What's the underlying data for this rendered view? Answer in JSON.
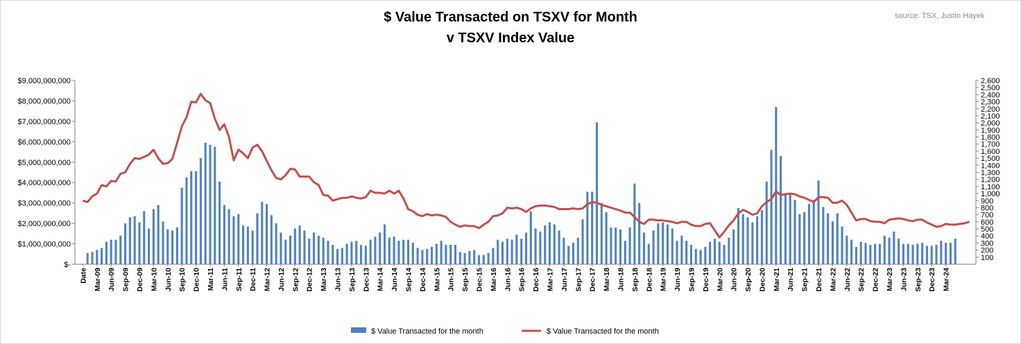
{
  "chart_data": {
    "type": "bar+line",
    "title_line1": "$ Value Transacted on TSXV for Month",
    "title_line2": "v TSXV Index Value",
    "source": "source: TSX, Justin Hayek",
    "y_left_ticks": [
      "$-",
      "$1,000,000,000",
      "$2,000,000,000",
      "$3,000,000,000",
      "$4,000,000,000",
      "$5,000,000,000",
      "$6,000,000,000",
      "$7,000,000,000",
      "$8,000,000,000",
      "$9,000,000,000"
    ],
    "y_left_range": [
      0,
      9000000000
    ],
    "y_right_ticks": [
      "100",
      "200",
      "300",
      "400",
      "500",
      "600",
      "700",
      "800",
      "900",
      "1,000",
      "1,100",
      "1,200",
      "1,300",
      "1,400",
      "1,500",
      "1,600",
      "1,700",
      "1,800",
      "1,900",
      "2,000",
      "2,100",
      "2,200",
      "2,300",
      "2,400",
      "2,500",
      "2,600"
    ],
    "y_right_range": [
      0,
      2600
    ],
    "x_first_label": "Date",
    "x_label_start": "Mar-09",
    "x_labels": [
      "Date",
      "Mar-09",
      "Jun-09",
      "Sep-09",
      "Dec-09",
      "Mar-10",
      "Jun-10",
      "Sep-10",
      "Dec-10",
      "Mar-11",
      "Jun-11",
      "Sep-11",
      "Dec-11",
      "Mar-12",
      "Jun-12",
      "Sep-12",
      "Dec-12",
      "Mar-13",
      "Jun-13",
      "Sep-13",
      "Dec-13",
      "Mar-14",
      "Jun-14",
      "Sep-14",
      "Dec-14",
      "Mar-15",
      "Jun-15",
      "Sep-15",
      "Dec-15",
      "Mar-16",
      "Jun-16",
      "Sep-16",
      "Dec-16",
      "Mar-17",
      "Jun-17",
      "Sep-17",
      "Dec-17",
      "Mar-18",
      "Jun-18",
      "Sep-18",
      "Dec-18",
      "Mar-19",
      "Jun-19",
      "Sep-19",
      "Dec-19",
      "Mar-20",
      "Jun-20",
      "Sep-20",
      "Dec-20",
      "Mar-21",
      "Jun-21",
      "Sep-21",
      "Dec-21",
      "Mar-22",
      "Jun-22",
      "Sep-22",
      "Dec-22",
      "Mar-23",
      "Jun-23",
      "Sep-23",
      "Dec-23",
      "Mar-24"
    ],
    "series": [
      {
        "name": "$ Value Transacted for the month",
        "kind": "bar",
        "axis": "left",
        "color": "#4f81bd",
        "values_billions": [
          0.55,
          0.6,
          0.7,
          0.8,
          1.1,
          1.2,
          1.2,
          1.4,
          2.0,
          2.3,
          2.35,
          2.05,
          2.6,
          1.75,
          2.7,
          2.9,
          2.1,
          1.7,
          1.65,
          1.8,
          3.75,
          4.25,
          4.55,
          4.55,
          5.2,
          5.95,
          5.85,
          5.75,
          4.05,
          2.9,
          2.7,
          2.35,
          2.45,
          1.9,
          1.85,
          1.65,
          2.5,
          3.05,
          2.95,
          2.4,
          2.0,
          1.55,
          1.2,
          1.4,
          1.75,
          1.9,
          1.65,
          1.25,
          1.55,
          1.4,
          1.3,
          1.15,
          0.95,
          0.75,
          0.8,
          1.0,
          1.1,
          1.15,
          0.95,
          0.9,
          1.2,
          1.35,
          1.55,
          1.95,
          1.3,
          1.35,
          1.15,
          1.2,
          1.2,
          1.05,
          0.8,
          0.7,
          0.75,
          0.85,
          1.0,
          1.15,
          0.95,
          0.95,
          0.95,
          0.6,
          0.55,
          0.65,
          0.7,
          0.45,
          0.45,
          0.55,
          0.8,
          1.2,
          1.1,
          1.25,
          1.2,
          1.45,
          1.25,
          1.55,
          2.6,
          1.75,
          1.6,
          1.9,
          2.05,
          1.95,
          1.65,
          1.3,
          0.9,
          1.05,
          1.3,
          2.2,
          3.55,
          3.55,
          6.95,
          3.0,
          2.55,
          1.8,
          1.8,
          1.7,
          1.15,
          1.8,
          3.95,
          3.0,
          1.55,
          1.0,
          1.65,
          2.0,
          2.05,
          1.95,
          1.75,
          1.15,
          1.4,
          1.15,
          0.95,
          0.75,
          0.7,
          0.85,
          1.1,
          1.25,
          1.1,
          0.95,
          1.3,
          1.7,
          2.75,
          2.45,
          2.3,
          2.05,
          2.35,
          2.65,
          4.05,
          5.6,
          7.7,
          5.3,
          3.45,
          3.5,
          3.15,
          2.45,
          2.55,
          2.95,
          3.15,
          4.1,
          2.8,
          2.5,
          2.1,
          2.5,
          1.85,
          1.4,
          1.2,
          0.85,
          1.1,
          1.05,
          0.95,
          1.0,
          1.0,
          1.4,
          1.3,
          1.6,
          1.25,
          1.0,
          1.0,
          0.95,
          1.0,
          1.05,
          0.9,
          0.9,
          0.95,
          1.15,
          1.05,
          1.05,
          1.25
        ]
      },
      {
        "name": "$ Value Transacted for the month",
        "kind": "line",
        "axis": "right",
        "color": "#c0504d",
        "values": [
          900,
          880,
          960,
          1000,
          1120,
          1100,
          1180,
          1170,
          1280,
          1300,
          1420,
          1500,
          1490,
          1520,
          1550,
          1620,
          1500,
          1420,
          1430,
          1490,
          1720,
          1950,
          2080,
          2300,
          2290,
          2410,
          2320,
          2280,
          2060,
          1900,
          1980,
          1800,
          1470,
          1620,
          1570,
          1500,
          1650,
          1690,
          1600,
          1460,
          1330,
          1220,
          1200,
          1260,
          1350,
          1340,
          1240,
          1240,
          1240,
          1160,
          1120,
          980,
          970,
          900,
          920,
          940,
          940,
          960,
          940,
          930,
          950,
          1040,
          1010,
          1010,
          1000,
          1040,
          1000,
          1040,
          930,
          780,
          750,
          700,
          680,
          710,
          690,
          700,
          690,
          670,
          600,
          560,
          530,
          550,
          540,
          540,
          510,
          560,
          600,
          680,
          690,
          720,
          800,
          790,
          800,
          780,
          740,
          790,
          820,
          830,
          830,
          820,
          810,
          780,
          780,
          780,
          790,
          780,
          790,
          850,
          880,
          870,
          840,
          820,
          800,
          780,
          760,
          730,
          730,
          670,
          600,
          570,
          630,
          630,
          620,
          620,
          610,
          600,
          580,
          600,
          600,
          560,
          540,
          540,
          570,
          580,
          480,
          380,
          460,
          550,
          620,
          720,
          770,
          740,
          700,
          720,
          820,
          880,
          920,
          1030,
          980,
          990,
          1000,
          990,
          960,
          940,
          910,
          880,
          950,
          950,
          940,
          870,
          870,
          900,
          840,
          730,
          620,
          640,
          640,
          610,
          600,
          600,
          580,
          630,
          640,
          650,
          640,
          620,
          610,
          630,
          630,
          590,
          560,
          530,
          540,
          570,
          560,
          560,
          570,
          580,
          600
        ]
      }
    ],
    "legend": [
      {
        "label": "$ Value Transacted for the month",
        "kind": "bar"
      },
      {
        "label": "$ Value Transacted for the month",
        "kind": "line"
      }
    ],
    "legend_position": "bottom-center",
    "gridlines": false
  }
}
